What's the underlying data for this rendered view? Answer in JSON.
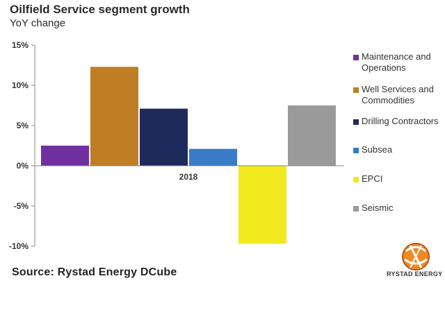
{
  "header": {
    "title": "Oilfield Service segment growth",
    "subtitle": "YoY change"
  },
  "footer": {
    "source": "Source: Rystad Energy DCube",
    "logo_text": "RYSTAD ENERGY"
  },
  "chart_data": {
    "type": "bar",
    "categories": [
      "2018"
    ],
    "series": [
      {
        "name": "Maintenance and Operations",
        "values": [
          2.5
        ],
        "color": "#7030a0"
      },
      {
        "name": "Well Services and Commodities",
        "values": [
          12.3
        ],
        "color": "#c07e24"
      },
      {
        "name": "Drilling Contractors",
        "values": [
          7.1
        ],
        "color": "#1f2a5c"
      },
      {
        "name": "Subsea",
        "values": [
          2.1
        ],
        "color": "#3a7bc8"
      },
      {
        "name": "EPCI",
        "values": [
          -9.7
        ],
        "color": "#f2ea1e"
      },
      {
        "name": "Seismic",
        "values": [
          7.5
        ],
        "color": "#9a9a9a"
      }
    ],
    "yticks": [
      "15%",
      "10%",
      "5%",
      "0%",
      "-5%",
      "-10%"
    ],
    "ytick_values": [
      15,
      10,
      5,
      0,
      -5,
      -10
    ],
    "ylim": [
      -10,
      15
    ],
    "title": "Oilfield Service segment growth",
    "subtitle": "YoY change",
    "xlabel": "",
    "ylabel": "",
    "grid": false,
    "legend": "right"
  }
}
